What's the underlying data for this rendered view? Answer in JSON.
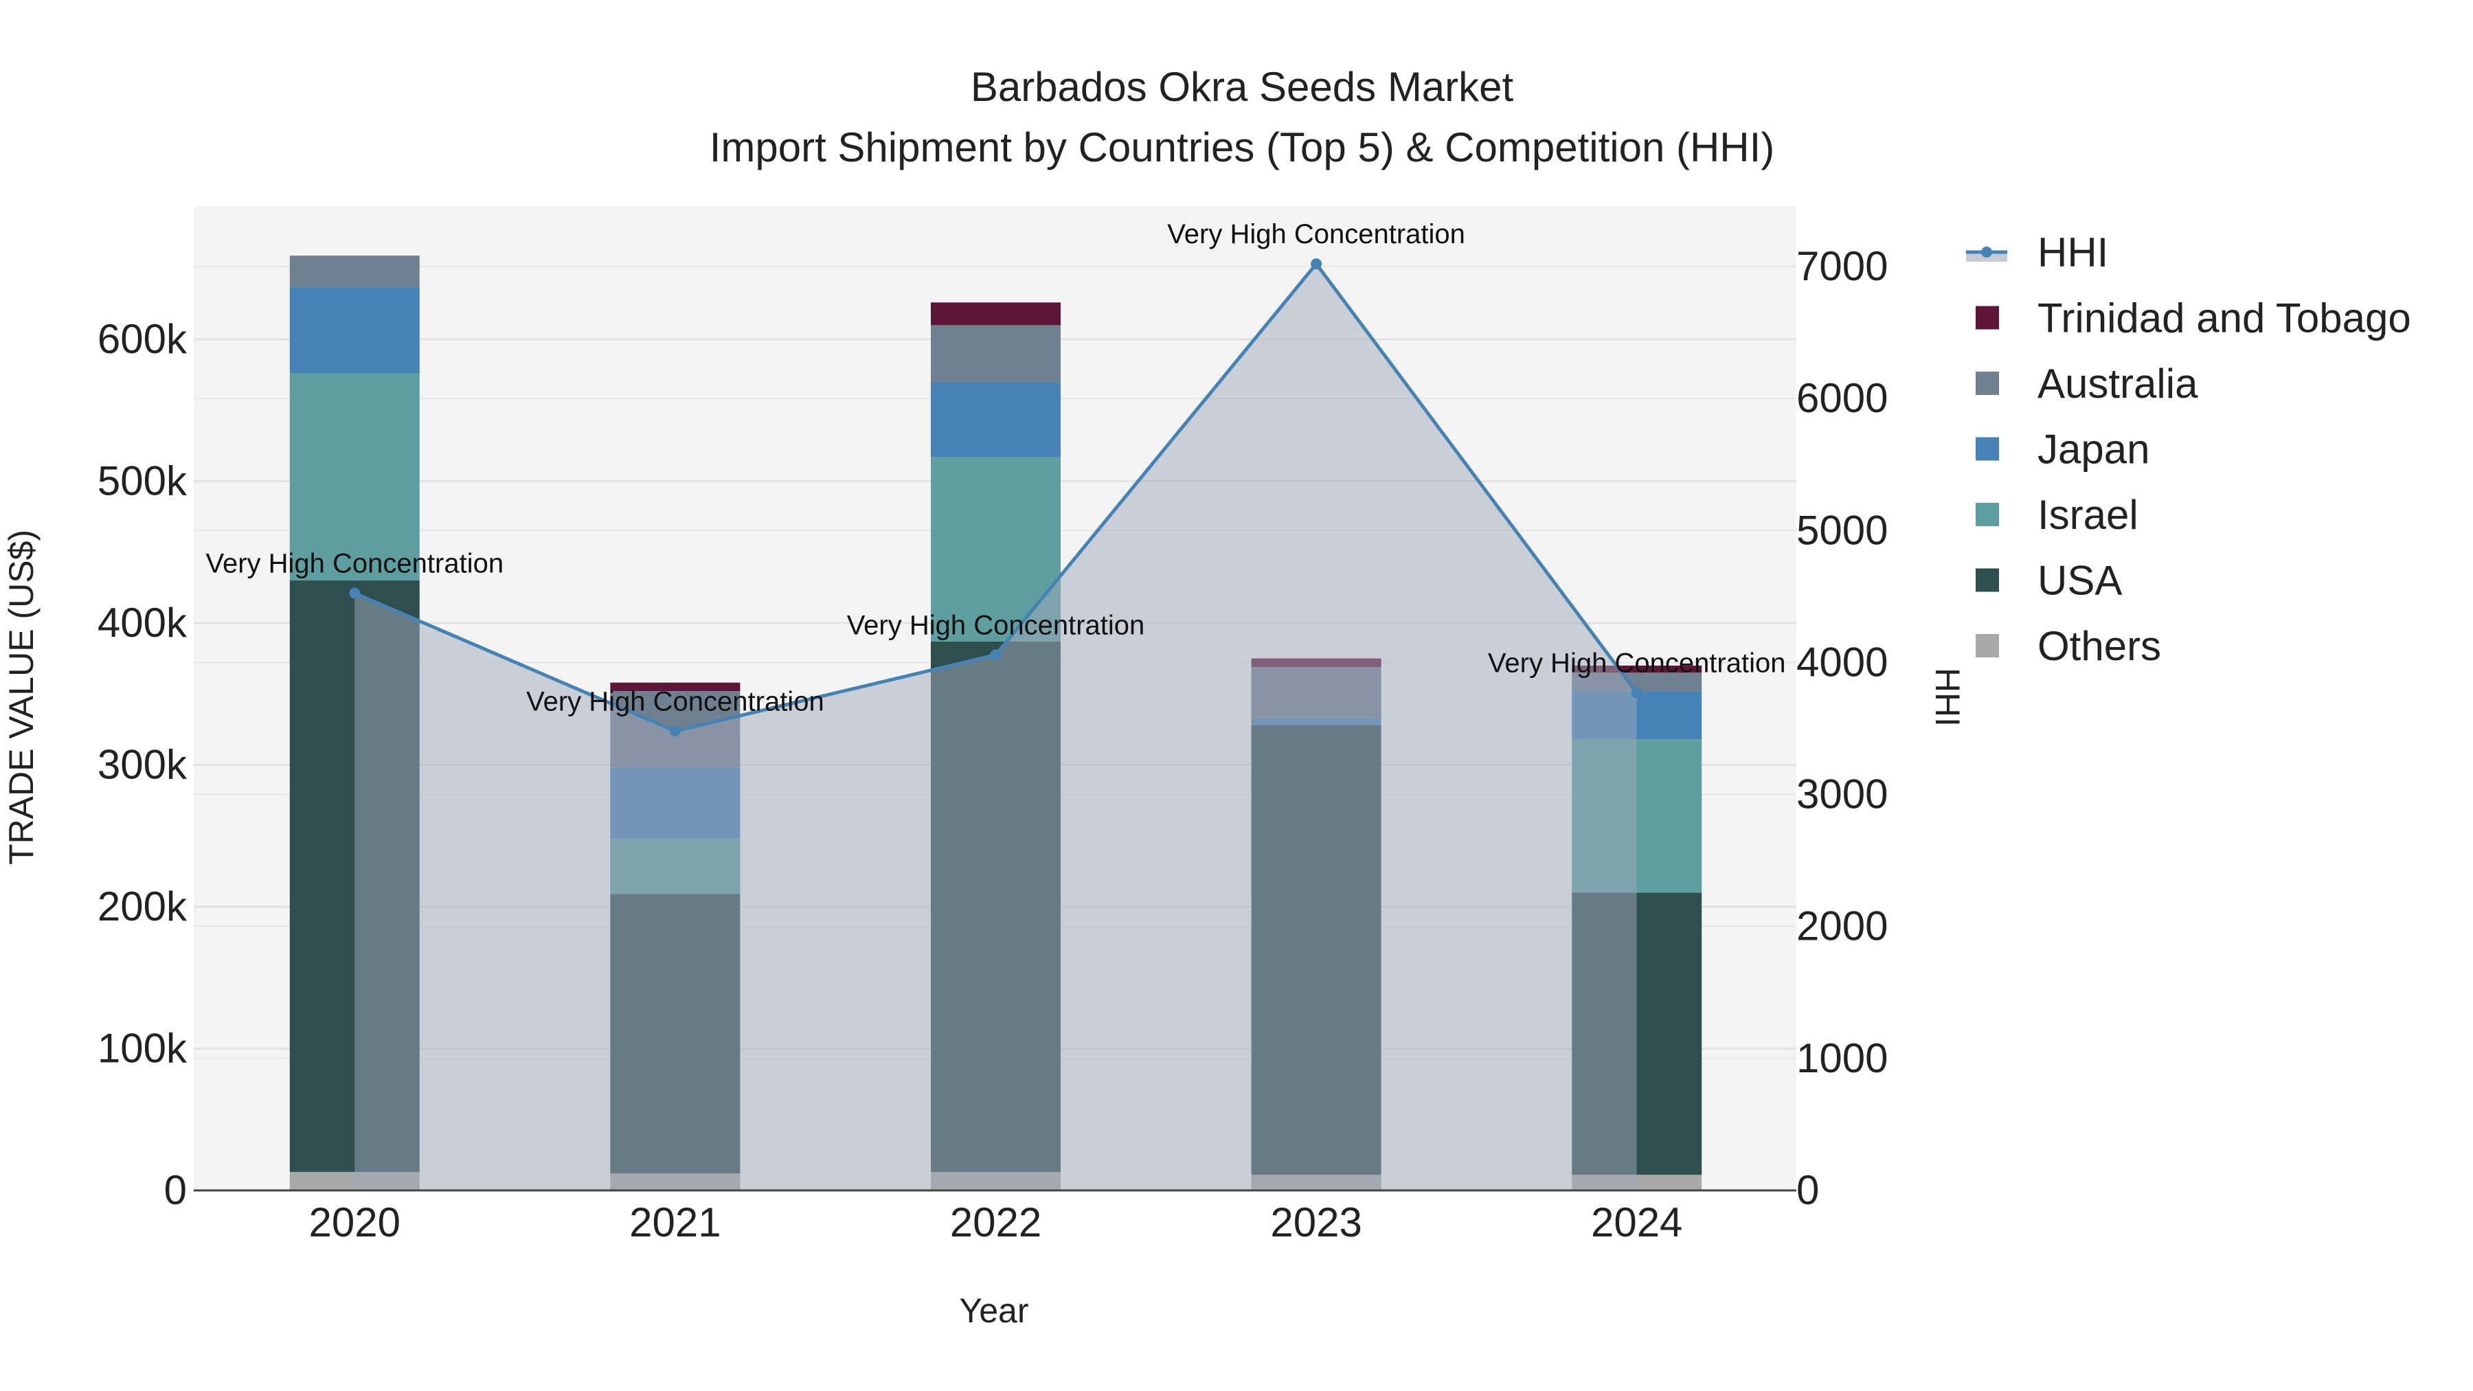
{
  "chart_data": {
    "type": "bar",
    "title": "Barbados Okra Seeds Market",
    "subtitle": "Import Shipment by Countries (Top 5) & Competition (HHI)",
    "xlabel": "Year",
    "ylabel": "TRADE VALUE (US$)",
    "y2label": "HHI",
    "categories": [
      "2020",
      "2021",
      "2022",
      "2023",
      "2024"
    ],
    "ylim": [
      0,
      690000
    ],
    "y2lim": [
      0,
      7400
    ],
    "yticks": [
      0,
      100000,
      200000,
      300000,
      400000,
      500000,
      600000
    ],
    "ytick_labels": [
      "0",
      "100k",
      "200k",
      "300k",
      "400k",
      "500k",
      "600k"
    ],
    "y2ticks": [
      0,
      1000,
      2000,
      3000,
      4000,
      5000,
      6000,
      7000
    ],
    "y2tick_labels": [
      "0",
      "1000",
      "2000",
      "3000",
      "4000",
      "5000",
      "6000",
      "7000"
    ],
    "grid": true,
    "legend_position": "right",
    "series": [
      {
        "name": "Others",
        "color": "#a9a9a9",
        "values": [
          13000,
          12000,
          13000,
          11000,
          11000
        ]
      },
      {
        "name": "USA",
        "color": "#2f4f4f",
        "values": [
          417000,
          197000,
          374000,
          317000,
          199000
        ]
      },
      {
        "name": "Israel",
        "color": "#5f9ea0",
        "values": [
          146000,
          39000,
          130000,
          0,
          108000
        ]
      },
      {
        "name": "Japan",
        "color": "#4682b4",
        "values": [
          61000,
          50000,
          53000,
          5000,
          34000
        ]
      },
      {
        "name": "Australia",
        "color": "#708090",
        "values": [
          22000,
          54000,
          40000,
          36000,
          13000
        ]
      },
      {
        "name": "Trinidad and Tobago",
        "color": "#5e1638",
        "values": [
          0,
          6000,
          16000,
          6000,
          5000
        ]
      }
    ],
    "line": {
      "name": "HHI",
      "color": "#4682b4",
      "values": [
        4525,
        3480,
        4058,
        7020,
        3770
      ],
      "annotations": [
        "Very High Concentration",
        "Very High Concentration",
        "Very High Concentration",
        "Very High Concentration",
        "Very High Concentration"
      ]
    },
    "legend_order": [
      "HHI",
      "Trinidad and Tobago",
      "Australia",
      "Japan",
      "Israel",
      "USA",
      "Others"
    ]
  }
}
